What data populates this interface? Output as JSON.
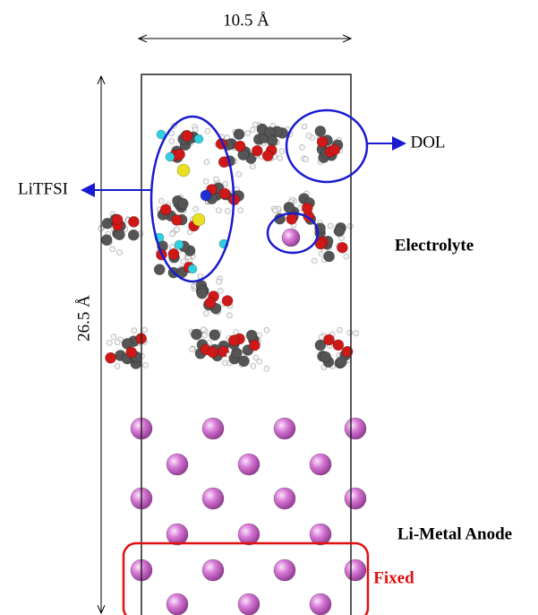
{
  "labels": {
    "width": "10.5 Å",
    "height": "26.5 Å",
    "dol": "DOL",
    "litfsi": "LiTFSI",
    "electrolyte": "Electrolyte",
    "anode": "Li-Metal Anode",
    "fixed": "Fixed"
  }
}
